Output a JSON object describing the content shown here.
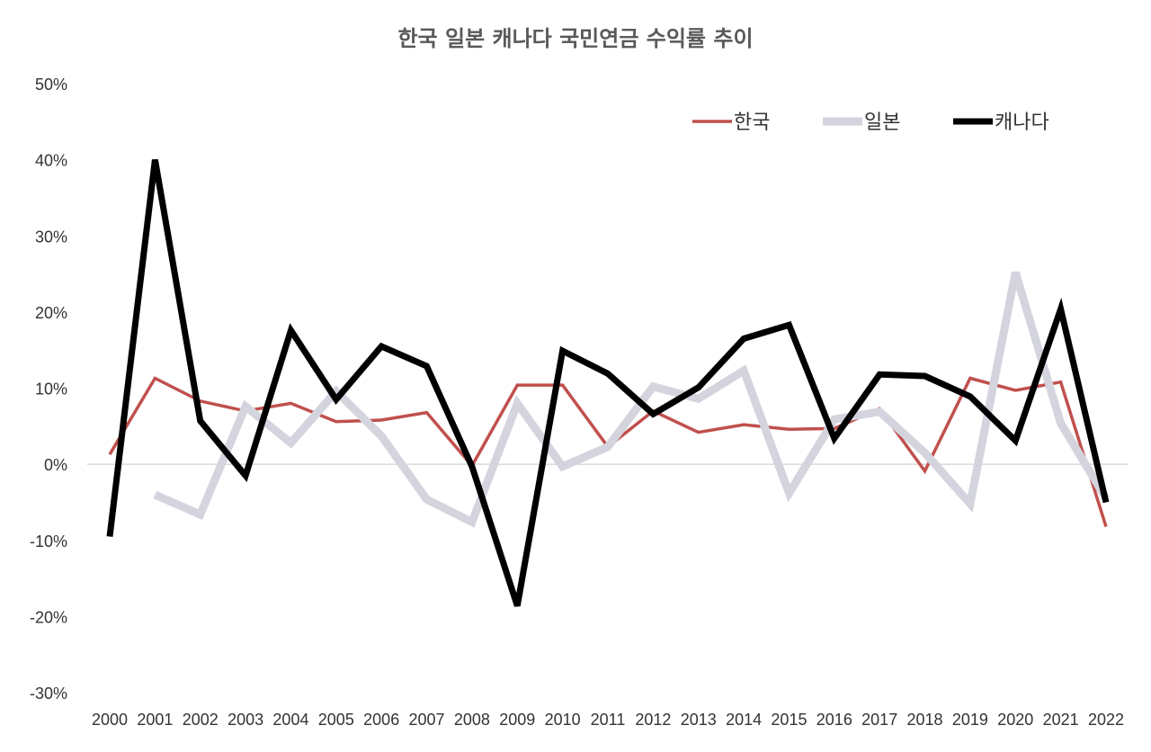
{
  "chart_data": {
    "type": "line",
    "title": "한국 일본 캐나다 국민연금 수익률 추이",
    "xlabel": "",
    "ylabel": "",
    "ylim": [
      -30,
      50
    ],
    "yticks": [
      50,
      40,
      30,
      20,
      10,
      0,
      -10,
      -20,
      -30
    ],
    "ytick_labels": [
      "50%",
      "40%",
      "30%",
      "20%",
      "10%",
      "0%",
      "-10%",
      "-20%",
      "-30%"
    ],
    "categories": [
      "2000",
      "2001",
      "2002",
      "2003",
      "2004",
      "2005",
      "2006",
      "2007",
      "2008",
      "2009",
      "2010",
      "2011",
      "2012",
      "2013",
      "2014",
      "2015",
      "2016",
      "2017",
      "2018",
      "2019",
      "2020",
      "2021",
      "2022"
    ],
    "legend_position": "top-right",
    "series": [
      {
        "name": "한국",
        "color": "#c0504d",
        "values": [
          1.3,
          11.3,
          8.3,
          7.0,
          8.0,
          5.6,
          5.8,
          6.8,
          -0.2,
          10.4,
          10.4,
          2.3,
          7.0,
          4.2,
          5.2,
          4.6,
          4.7,
          7.3,
          -0.9,
          11.3,
          9.7,
          10.8,
          -8.2
        ]
      },
      {
        "name": "일본",
        "color": "#d3d4de",
        "values": [
          null,
          -4.0,
          -6.6,
          7.6,
          2.8,
          9.6,
          3.7,
          -4.6,
          -7.6,
          8.0,
          -0.3,
          2.3,
          10.2,
          8.6,
          12.3,
          -3.8,
          5.9,
          6.9,
          1.5,
          -5.2,
          25.2,
          5.4,
          -4.5
        ]
      },
      {
        "name": "캐나다",
        "color": "#000000",
        "values": [
          -9.5,
          40.0,
          5.7,
          -1.5,
          17.6,
          8.5,
          15.5,
          12.9,
          -0.3,
          -18.6,
          14.9,
          11.9,
          6.6,
          10.1,
          16.5,
          18.3,
          3.4,
          11.8,
          11.6,
          8.9,
          3.1,
          20.4,
          -5.0
        ]
      }
    ]
  }
}
